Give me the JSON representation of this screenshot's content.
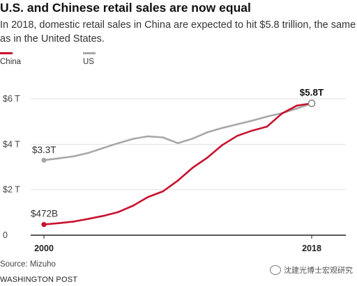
{
  "header": {
    "title": "U.S. and Chinese retail sales are now equal",
    "subtitle": "In 2018, domestic retail sales in China are expected to hit $5.8 trillion, the same as in the United States."
  },
  "footer": {
    "source": "Source: Mizuho",
    "publisher": "WASHINGTON POST",
    "watermark": "沈建光博士宏观研究"
  },
  "chart_data": {
    "type": "line",
    "title": "",
    "xlabel": "",
    "ylabel": "",
    "xlim": [
      2000,
      2018
    ],
    "ylim": [
      0,
      6.2
    ],
    "x_tick_labels": [
      {
        "value": 2000,
        "label": "2000"
      },
      {
        "value": 2018,
        "label": "2018"
      }
    ],
    "y_ticks": [
      {
        "value": 0,
        "label": "0"
      },
      {
        "value": 2,
        "label": "$2 T"
      },
      {
        "value": 4,
        "label": "$4 T"
      },
      {
        "value": 6,
        "label": "$6 T"
      }
    ],
    "legend_placement": "top-left",
    "grid": "horizontal",
    "series": [
      {
        "name": "China",
        "color": "#c8102e",
        "points": [
          [
            2000,
            0.47
          ],
          [
            2001,
            0.53
          ],
          [
            2002,
            0.6
          ],
          [
            2003,
            0.72
          ],
          [
            2004,
            0.85
          ],
          [
            2005,
            1.02
          ],
          [
            2006,
            1.3
          ],
          [
            2007,
            1.68
          ],
          [
            2008,
            1.93
          ],
          [
            2009,
            2.4
          ],
          [
            2010,
            2.97
          ],
          [
            2011,
            3.42
          ],
          [
            2012,
            3.97
          ],
          [
            2013,
            4.37
          ],
          [
            2014,
            4.6
          ],
          [
            2015,
            4.78
          ],
          [
            2016,
            5.35
          ],
          [
            2017,
            5.7
          ],
          [
            2018,
            5.8
          ]
        ]
      },
      {
        "name": "US",
        "color": "#a8a8a8",
        "points": [
          [
            2000,
            3.3
          ],
          [
            2001,
            3.38
          ],
          [
            2002,
            3.47
          ],
          [
            2003,
            3.62
          ],
          [
            2004,
            3.84
          ],
          [
            2005,
            4.05
          ],
          [
            2006,
            4.24
          ],
          [
            2007,
            4.35
          ],
          [
            2008,
            4.3
          ],
          [
            2009,
            4.05
          ],
          [
            2010,
            4.25
          ],
          [
            2011,
            4.53
          ],
          [
            2012,
            4.72
          ],
          [
            2013,
            4.88
          ],
          [
            2014,
            5.04
          ],
          [
            2015,
            5.22
          ],
          [
            2016,
            5.37
          ],
          [
            2017,
            5.57
          ],
          [
            2018,
            5.8
          ]
        ]
      }
    ],
    "annotations": [
      {
        "series": "US",
        "x": 2000,
        "y": 3.3,
        "label": "$3.3T"
      },
      {
        "series": "China",
        "x": 2000,
        "y": 0.47,
        "label": "$472B"
      },
      {
        "series": "both",
        "x": 2018,
        "y": 5.8,
        "label": "$5.8T"
      }
    ]
  }
}
